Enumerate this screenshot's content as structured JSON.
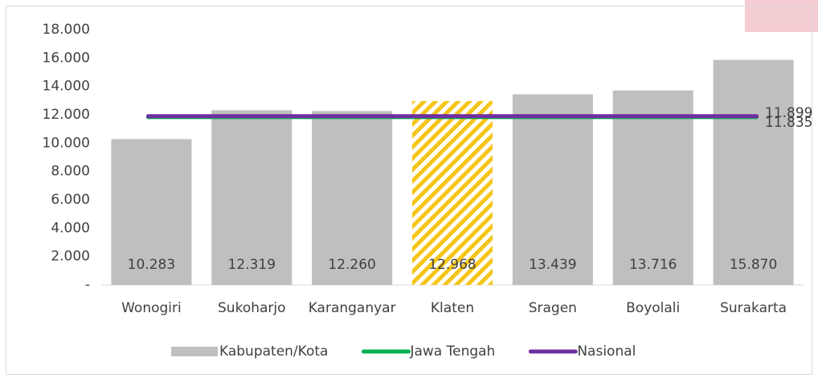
{
  "chart_data": {
    "type": "bar",
    "categories": [
      "Wonogiri",
      "Sukoharjo",
      "Karanganyar",
      "Klaten",
      "Sragen",
      "Boyolali",
      "Surakarta"
    ],
    "series": [
      {
        "name": "Kabupaten/Kota",
        "color": "#bfbfbf",
        "values": [
          10283,
          12319,
          12260,
          12968,
          13439,
          13716,
          15870
        ],
        "value_labels": [
          "10.283",
          "12.319",
          "12.260",
          "12.968",
          "13.439",
          "13.716",
          "15.870"
        ]
      }
    ],
    "highlight_category": "Klaten",
    "highlight_color": "#f5c518",
    "reference_lines": [
      {
        "name": "Jawa Tengah",
        "color": "#00b050",
        "value": 11835,
        "value_label": "11.835"
      },
      {
        "name": "Nasional",
        "color": "#7030a0",
        "value": 11899,
        "value_label": "11.899"
      }
    ],
    "ylim": [
      0,
      18000
    ],
    "yticks": [
      {
        "value": 0,
        "label": "-"
      },
      {
        "value": 2000,
        "label": "2.000"
      },
      {
        "value": 4000,
        "label": "4.000"
      },
      {
        "value": 6000,
        "label": "6.000"
      },
      {
        "value": 8000,
        "label": "8.000"
      },
      {
        "value": 10000,
        "label": "10.000"
      },
      {
        "value": 12000,
        "label": "12.000"
      },
      {
        "value": 14000,
        "label": "14.000"
      },
      {
        "value": 16000,
        "label": "16.000"
      },
      {
        "value": 18000,
        "label": "18.000"
      }
    ],
    "legend": "bottom"
  }
}
